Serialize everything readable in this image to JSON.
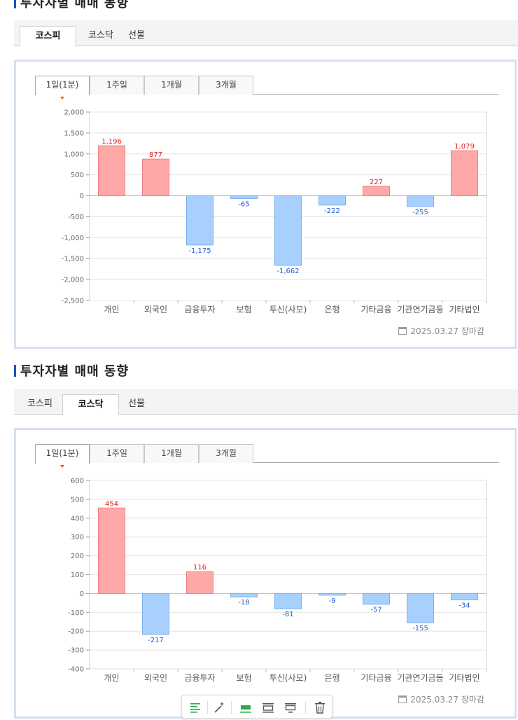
{
  "sections": [
    {
      "title": "투자자별 매매 동향",
      "market_tabs": [
        "코스피",
        "코스닥",
        "선물"
      ],
      "active_market": 0,
      "period_tabs": [
        "1일(1분)",
        "1주일",
        "1개월",
        "3개월"
      ],
      "active_period": 0,
      "source_date": "2025.03.27 장마감"
    },
    {
      "title": "투자자별 매매 동향",
      "market_tabs": [
        "코스피",
        "코스닥",
        "선물"
      ],
      "active_market": 1,
      "period_tabs": [
        "1일(1분)",
        "1주일",
        "1개월",
        "3개월"
      ],
      "active_period": 0,
      "source_date": "2025.03.27 장마감"
    }
  ],
  "colors": {
    "positive_fill": "#ffa8a8",
    "positive_stroke": "#f08080",
    "positive_label": "#e21b1b",
    "negative_fill": "#a8d0ff",
    "negative_stroke": "#7ab0ec",
    "negative_label": "#1f5fd0"
  },
  "toolbar": {
    "icons": [
      "align-left-icon",
      "magic-wand-icon",
      "layout-full-icon",
      "layout-top-icon",
      "layout-middle-icon",
      "trash-icon"
    ]
  },
  "chart_data": [
    {
      "type": "bar",
      "categories": [
        "개인",
        "외국인",
        "금융투자",
        "보험",
        "투신(사모)",
        "은행",
        "기타금융",
        "기관연기금등",
        "기타법인"
      ],
      "values": [
        1196,
        877,
        -1175,
        -65,
        -1662,
        -222,
        227,
        -255,
        1079
      ],
      "data_labels": [
        "1,196",
        "877",
        "-1,175",
        "-65",
        "-1,662",
        "-222",
        "227",
        "-255",
        "1,079"
      ],
      "yticks": [
        2000,
        1500,
        1000,
        500,
        0,
        -500,
        -1000,
        -1500,
        -2000,
        -2500
      ],
      "ytick_labels": [
        "2,000",
        "1,500",
        "1,000",
        "500",
        "0",
        "-500",
        "-1,000",
        "-1,500",
        "-2,000",
        "-2,500"
      ],
      "ylim": [
        -2500,
        2000
      ],
      "grid": true,
      "title": "",
      "xlabel": "",
      "ylabel": ""
    },
    {
      "type": "bar",
      "categories": [
        "개인",
        "외국인",
        "금융투자",
        "보험",
        "투신(사모)",
        "은행",
        "기타금융",
        "기관연기금등",
        "기타법인"
      ],
      "values": [
        454,
        -217,
        116,
        -18,
        -81,
        -9,
        -57,
        -155,
        -34
      ],
      "data_labels": [
        "454",
        "-217",
        "116",
        "-18",
        "-81",
        "-9",
        "-57",
        "-155",
        "-34"
      ],
      "yticks": [
        600,
        500,
        400,
        300,
        200,
        100,
        0,
        -100,
        -200,
        -300,
        -400
      ],
      "ytick_labels": [
        "600",
        "500",
        "400",
        "300",
        "200",
        "100",
        "0",
        "-100",
        "-200",
        "-300",
        "-400"
      ],
      "ylim": [
        -400,
        600
      ],
      "grid": true,
      "title": "",
      "xlabel": "",
      "ylabel": ""
    }
  ]
}
